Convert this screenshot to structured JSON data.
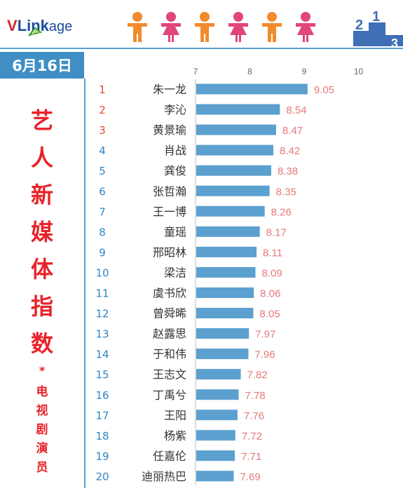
{
  "logo": {
    "v": "V",
    "link": "Link",
    "age": "age"
  },
  "podium_digits": [
    "2",
    "1",
    "3"
  ],
  "date": "6月16日",
  "title_chars": [
    "艺",
    "人",
    "新",
    "媒",
    "体",
    "指",
    "数"
  ],
  "star": "*",
  "subtitle_chars": [
    "电",
    "视",
    "剧",
    "演",
    "员"
  ],
  "colors": {
    "bar": "#5ba0cf",
    "rank_top": "#e84a2a",
    "rank_rest": "#2f86c6",
    "value": "#e8787a",
    "title": "#e8232a",
    "date_bg": "#3f8fc4",
    "person_male": "#f28a2e",
    "person_female": "#e0457b"
  },
  "icons": [
    "male-person-icon",
    "female-person-icon",
    "podium-icon"
  ],
  "chart_data": {
    "type": "bar",
    "orientation": "horizontal",
    "xlim": [
      7,
      10
    ],
    "x_ticks": [
      "7",
      "8",
      "9",
      "10"
    ],
    "ranks": [
      "1",
      "2",
      "3",
      "4",
      "5",
      "6",
      "7",
      "8",
      "9",
      "10",
      "11",
      "12",
      "13",
      "14",
      "15",
      "16",
      "17",
      "18",
      "19",
      "20"
    ],
    "categories": [
      "朱一龙",
      "李沁",
      "黄景瑜",
      "肖战",
      "龚俊",
      "张哲瀚",
      "王一博",
      "童瑶",
      "邢昭林",
      "梁洁",
      "虞书欣",
      "曾舜晞",
      "赵露思",
      "于和伟",
      "王志文",
      "丁禹兮",
      "王阳",
      "杨紫",
      "任嘉伦",
      "迪丽热巴"
    ],
    "values": [
      9.05,
      8.54,
      8.47,
      8.42,
      8.38,
      8.35,
      8.26,
      8.17,
      8.11,
      8.09,
      8.06,
      8.05,
      7.97,
      7.96,
      7.82,
      7.78,
      7.76,
      7.72,
      7.71,
      7.69
    ],
    "value_labels": [
      "9.05",
      "8.54",
      "8.47",
      "8.42",
      "8.38",
      "8.35",
      "8.26",
      "8.17",
      "8.11",
      "8.09",
      "8.06",
      "8.05",
      "7.97",
      "7.96",
      "7.82",
      "7.78",
      "7.76",
      "7.72",
      "7.71",
      "7.69"
    ],
    "grid": false,
    "legend": "none"
  }
}
